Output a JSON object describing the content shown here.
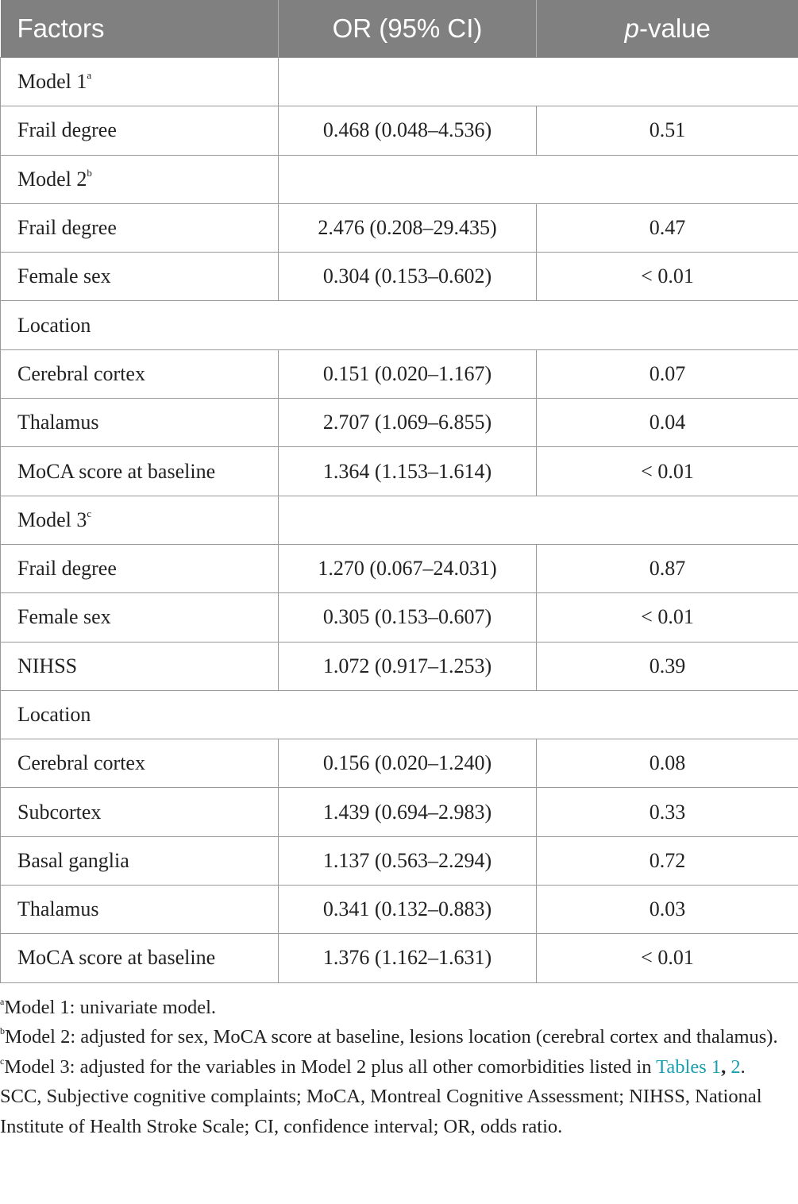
{
  "table": {
    "header": [
      "Factors",
      "OR (95% CI)",
      {
        "italic": "p",
        "rest": "-value"
      }
    ],
    "rows": [
      {
        "group": "Model 1",
        "sup": "a"
      },
      [
        "Frail degree",
        "0.468 (0.048–4.536)",
        "0.51"
      ],
      {
        "group": "Model 2",
        "sup": "b"
      },
      [
        "Frail degree",
        "2.476 (0.208–29.435)",
        "0.47"
      ],
      [
        "Female sex",
        "0.304 (0.153–0.602)",
        "< 0.01"
      ],
      {
        "section": "Location"
      },
      [
        "Cerebral cortex",
        "0.151 (0.020–1.167)",
        "0.07"
      ],
      [
        "Thalamus",
        "2.707 (1.069–6.855)",
        "0.04"
      ],
      [
        "MoCA score at baseline",
        "1.364 (1.153–1.614)",
        "< 0.01"
      ],
      {
        "group": "Model 3",
        "sup": "c"
      },
      [
        "Frail degree",
        "1.270 (0.067–24.031)",
        "0.87"
      ],
      [
        "Female sex",
        "0.305 (0.153–0.607)",
        "< 0.01"
      ],
      [
        "NIHSS",
        "1.072 (0.917–1.253)",
        "0.39"
      ],
      {
        "section": "Location"
      },
      [
        "Cerebral cortex",
        "0.156 (0.020–1.240)",
        "0.08"
      ],
      [
        "Subcortex",
        "1.439 (0.694–2.983)",
        "0.33"
      ],
      [
        "Basal ganglia",
        "1.137 (0.563–2.294)",
        "0.72"
      ],
      [
        "Thalamus",
        "0.341 (0.132–0.883)",
        "0.03"
      ],
      [
        "MoCA score at baseline",
        "1.376 (1.162–1.631)",
        "< 0.01"
      ]
    ]
  },
  "footnotes": [
    {
      "sup": "a",
      "text": "Model 1: univariate model."
    },
    {
      "sup": "b",
      "text": "Model 2: adjusted for sex, MoCA score at baseline, lesions location (cerebral cortex and thalamus)."
    },
    {
      "sup": "c",
      "text": "Model 3: adjusted for the variables in Model 2 plus all other comorbidities listed in",
      "link1": "Tables 1",
      "separator": ",",
      "link2": "2",
      "end": "."
    }
  ],
  "abbreviations": "SCC, Subjective cognitive complaints; MoCA, Montreal Cognitive Assessment; NIHSS, National Institute of Health Stroke Scale; CI, confidence interval; OR, odds ratio."
}
